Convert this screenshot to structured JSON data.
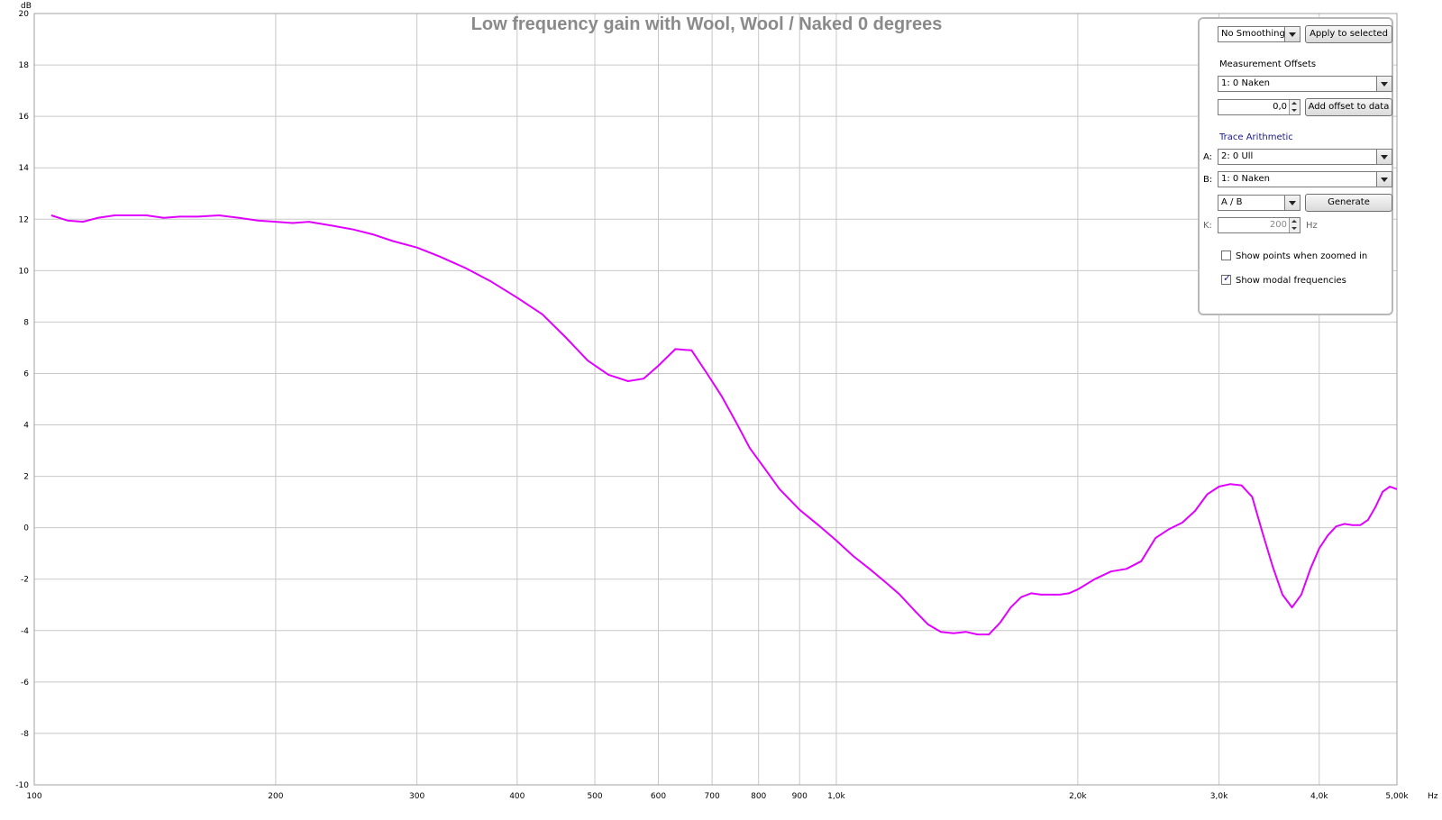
{
  "chart_data": {
    "type": "line",
    "title": "Low frequency gain with Wool, Wool / Naked 0 degrees",
    "y_unit": "dB",
    "x_unit": "Hz",
    "x_scale": "log",
    "xlim": [
      100,
      5000
    ],
    "ylim": [
      -10,
      20
    ],
    "grid": true,
    "x_ticks": [
      {
        "v": 100,
        "label": "100"
      },
      {
        "v": 200,
        "label": "200"
      },
      {
        "v": 300,
        "label": "300"
      },
      {
        "v": 400,
        "label": "400"
      },
      {
        "v": 500,
        "label": "500"
      },
      {
        "v": 600,
        "label": "600"
      },
      {
        "v": 700,
        "label": "700"
      },
      {
        "v": 800,
        "label": "800"
      },
      {
        "v": 900,
        "label": "900"
      },
      {
        "v": 1000,
        "label": "1,0k"
      },
      {
        "v": 2000,
        "label": "2,0k"
      },
      {
        "v": 3000,
        "label": "3,0k"
      },
      {
        "v": 4000,
        "label": "4,0k"
      },
      {
        "v": 5000,
        "label": "5,00k"
      }
    ],
    "y_ticks": [
      {
        "v": 20,
        "label": "20"
      },
      {
        "v": 18,
        "label": "18"
      },
      {
        "v": 16,
        "label": "16"
      },
      {
        "v": 14,
        "label": "14"
      },
      {
        "v": 12,
        "label": "12"
      },
      {
        "v": 10,
        "label": "10"
      },
      {
        "v": 8,
        "label": "8"
      },
      {
        "v": 6,
        "label": "6"
      },
      {
        "v": 4,
        "label": "4"
      },
      {
        "v": 2,
        "label": "2"
      },
      {
        "v": 0,
        "label": "0"
      },
      {
        "v": -2,
        "label": "-2"
      },
      {
        "v": -4,
        "label": "-4"
      },
      {
        "v": -6,
        "label": "-6"
      },
      {
        "v": -8,
        "label": "-8"
      },
      {
        "v": -10,
        "label": "-10"
      }
    ],
    "series": [
      {
        "color": "#e000ff",
        "x": [
          105,
          110,
          115,
          120,
          126,
          132,
          138,
          145,
          152,
          160,
          170,
          180,
          190,
          200,
          210,
          220,
          235,
          250,
          265,
          280,
          300,
          320,
          345,
          370,
          400,
          430,
          460,
          490,
          520,
          550,
          575,
          600,
          630,
          660,
          690,
          720,
          750,
          780,
          810,
          850,
          900,
          950,
          1000,
          1050,
          1100,
          1150,
          1200,
          1250,
          1300,
          1350,
          1400,
          1450,
          1500,
          1550,
          1600,
          1650,
          1700,
          1750,
          1800,
          1850,
          1900,
          1950,
          2000,
          2100,
          2200,
          2300,
          2400,
          2500,
          2600,
          2700,
          2800,
          2900,
          3000,
          3100,
          3200,
          3300,
          3400,
          3500,
          3600,
          3700,
          3800,
          3900,
          4000,
          4100,
          4200,
          4300,
          4400,
          4500,
          4600,
          4700,
          4800,
          4900,
          5000
        ],
        "y": [
          12.15,
          11.95,
          11.9,
          12.05,
          12.15,
          12.15,
          12.15,
          12.05,
          12.1,
          12.1,
          12.15,
          12.05,
          11.95,
          11.9,
          11.85,
          11.9,
          11.75,
          11.6,
          11.4,
          11.15,
          10.9,
          10.55,
          10.1,
          9.6,
          8.95,
          8.3,
          7.4,
          6.5,
          5.95,
          5.7,
          5.8,
          6.3,
          6.95,
          6.9,
          6.0,
          5.1,
          4.1,
          3.1,
          2.4,
          1.5,
          0.7,
          0.1,
          -0.5,
          -1.1,
          -1.6,
          -2.1,
          -2.6,
          -3.2,
          -3.75,
          -4.05,
          -4.1,
          -4.05,
          -4.15,
          -4.15,
          -3.7,
          -3.1,
          -2.7,
          -2.55,
          -2.6,
          -2.6,
          -2.6,
          -2.55,
          -2.4,
          -2.0,
          -1.7,
          -1.6,
          -1.3,
          -0.4,
          -0.05,
          0.2,
          0.65,
          1.3,
          1.6,
          1.7,
          1.65,
          1.2,
          -0.2,
          -1.5,
          -2.6,
          -3.1,
          -2.6,
          -1.6,
          -0.8,
          -0.3,
          0.05,
          0.15,
          0.1,
          0.1,
          0.3,
          0.8,
          1.4,
          1.6,
          1.5
        ]
      }
    ]
  },
  "panel": {
    "smoothing": "No Smoothing",
    "apply_label": "Apply to selected",
    "offsets_heading": "Measurement Offsets",
    "offset_measurement": "1: 0 Naken",
    "offset_value": "0,0",
    "add_offset_label": "Add offset to data",
    "arith_heading": "Trace Arithmetic",
    "a_label": "A:",
    "a_value": "2: 0 Ull",
    "b_label": "B:",
    "b_value": "1: 0 Naken",
    "op_value": "A / B",
    "generate_label": "Generate",
    "k_label": "K:",
    "k_value": "200",
    "k_unit": "Hz",
    "show_points_label": "Show points when zoomed in",
    "show_points_checked": false,
    "show_modal_label": "Show modal frequencies",
    "show_modal_checked": true
  },
  "colors": {
    "trace": "#e000ff",
    "grid": "#c8c8c8",
    "frame": "#a0a0a0",
    "title": "#8a8a8a"
  }
}
